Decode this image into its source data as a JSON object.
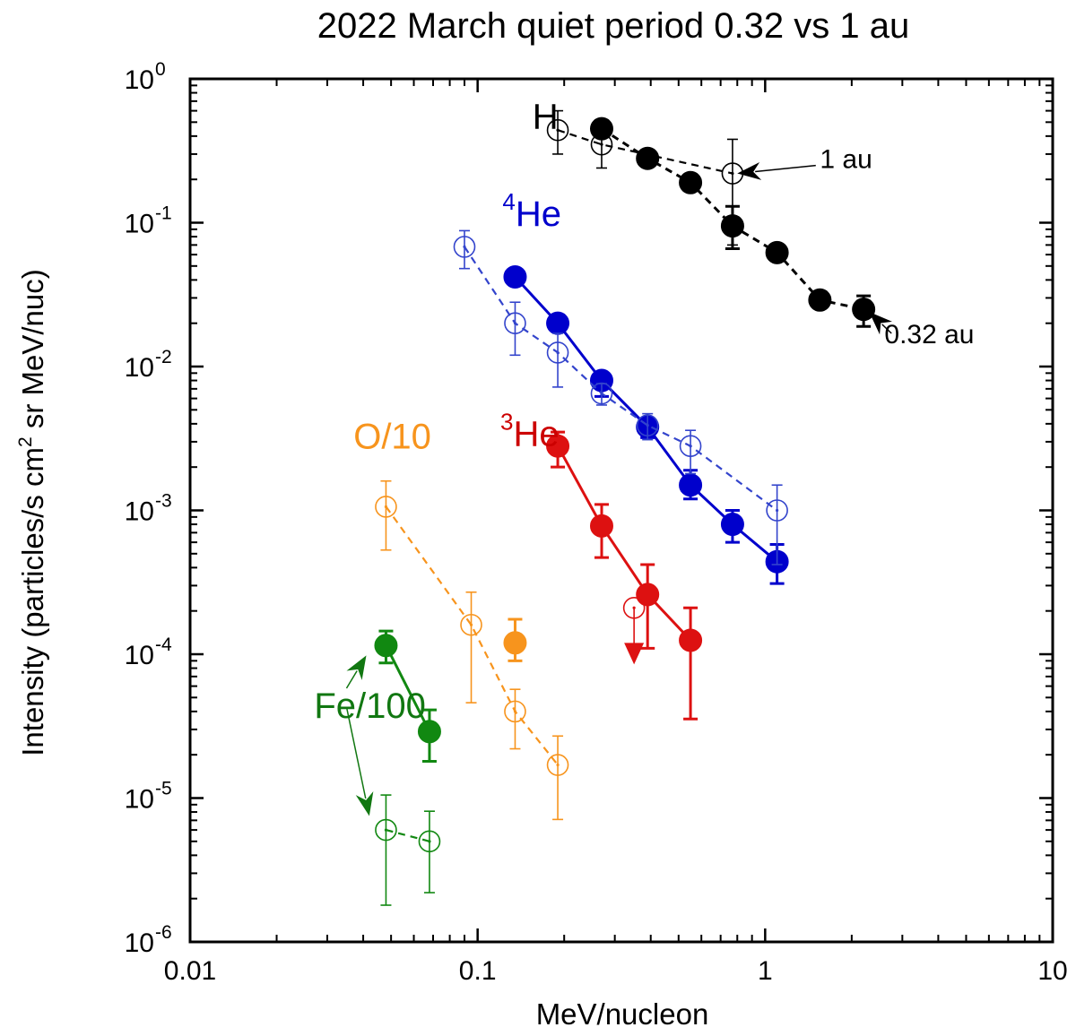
{
  "chart_data": {
    "type": "scatter",
    "title": "2022 March quiet period 0.32 vs 1 au",
    "xlabel": "MeV/nucleon",
    "ylabel": "Intensity (particles/s cm² sr MeV/nuc)",
    "ylabel_parts": [
      "Intensity (particles/s cm",
      "2",
      " sr MeV/nuc)"
    ],
    "xscale": "log",
    "yscale": "log",
    "xlim": [
      0.01,
      10
    ],
    "ylim": [
      1e-06,
      1
    ],
    "x_ticks": [
      {
        "value": 0.01,
        "label": "0.01"
      },
      {
        "value": 0.1,
        "label": "0.1"
      },
      {
        "value": 1,
        "label": "1"
      },
      {
        "value": 10,
        "label": "10"
      }
    ],
    "y_ticks": [
      {
        "value": 1e-06,
        "base": "10",
        "exp": "-6"
      },
      {
        "value": 1e-05,
        "base": "10",
        "exp": "-5"
      },
      {
        "value": 0.0001,
        "base": "10",
        "exp": "-4"
      },
      {
        "value": 0.001,
        "base": "10",
        "exp": "-3"
      },
      {
        "value": 0.01,
        "base": "10",
        "exp": "-2"
      },
      {
        "value": 0.1,
        "base": "10",
        "exp": "-1"
      },
      {
        "value": 1,
        "base": "10",
        "exp": "0"
      }
    ],
    "series": [
      {
        "name": "H 0.32 au",
        "species": "H",
        "distance": "0.32 au",
        "color": "#000000",
        "filled": true,
        "line": "dashed",
        "x": [
          0.27,
          0.39,
          0.55,
          0.77,
          1.1,
          1.55,
          2.2
        ],
        "y": [
          0.45,
          0.28,
          0.19,
          0.095,
          0.062,
          0.029,
          0.025
        ],
        "err_low": [
          null,
          null,
          null,
          0.066,
          null,
          null,
          0.019
        ],
        "err_high": [
          null,
          null,
          null,
          0.13,
          null,
          0.033,
          0.031
        ]
      },
      {
        "name": "H 1 au",
        "species": "H",
        "distance": "1 au",
        "color": "#000000",
        "filled": false,
        "line": "dashed",
        "x": [
          0.19,
          0.27,
          0.77
        ],
        "y": [
          0.44,
          0.35,
          0.22
        ],
        "err_low": [
          0.3,
          0.24,
          0.07
        ],
        "err_high": [
          0.6,
          0.48,
          0.38
        ]
      },
      {
        "name": "4He 0.32 au",
        "species": "4He",
        "distance": "0.32 au",
        "color": "#0000cc",
        "filled": true,
        "line": "solid",
        "x": [
          0.135,
          0.19,
          0.27,
          0.39,
          0.55,
          0.77,
          1.1
        ],
        "y": [
          0.042,
          0.02,
          0.008,
          0.0038,
          0.0015,
          0.0008,
          0.00044
        ],
        "err_low": [
          null,
          null,
          0.0062,
          0.0032,
          0.0012,
          0.0006,
          0.00031
        ],
        "err_high": [
          null,
          null,
          null,
          null,
          0.0019,
          0.001,
          0.00058
        ]
      },
      {
        "name": "4He 1 au",
        "species": "4He",
        "distance": "1 au",
        "color": "#3344cc",
        "filled": false,
        "line": "dashed",
        "x": [
          0.09,
          0.135,
          0.19,
          0.27,
          0.39,
          0.55,
          1.1
        ],
        "y": [
          0.068,
          0.02,
          0.0125,
          0.0065,
          0.0039,
          0.0028,
          0.001
        ],
        "err_low": [
          0.048,
          0.012,
          0.0072,
          0.0054,
          0.0031,
          0.0018,
          0.00042
        ],
        "err_high": [
          0.088,
          0.028,
          0.017,
          0.0076,
          0.0047,
          0.0036,
          0.0015
        ]
      },
      {
        "name": "3He 0.32 au",
        "species": "3He",
        "distance": "0.32 au",
        "color": "#dd1111",
        "filled": true,
        "line": "solid",
        "x": [
          0.19,
          0.27,
          0.39,
          0.55
        ],
        "y": [
          0.0028,
          0.00078,
          0.00026,
          0.000125
        ],
        "err_low": [
          0.002,
          0.00047,
          0.00011,
          3.55e-05
        ],
        "err_high": [
          0.0035,
          0.0011,
          0.00042,
          0.00021
        ]
      },
      {
        "name": "3He 1 au",
        "species": "3He",
        "distance": "1 au",
        "color": "#dd1111",
        "filled": false,
        "line": "none",
        "x": [
          0.35
        ],
        "y": [
          0.00021
        ],
        "upper_limit": true,
        "arrow_tip": 8.5e-05
      },
      {
        "name": "O/10 0.32 au",
        "species": "O/10",
        "distance": "0.32 au",
        "color": "#f7941d",
        "filled": true,
        "line": "none",
        "x": [
          0.135
        ],
        "y": [
          0.00012
        ],
        "err_low": [
          9e-05
        ],
        "err_high": [
          0.000175
        ]
      },
      {
        "name": "O/10 1 au",
        "species": "O/10",
        "distance": "1 au",
        "color": "#f7941d",
        "filled": false,
        "line": "dashed",
        "x": [
          0.048,
          0.095,
          0.135,
          0.19
        ],
        "y": [
          0.00106,
          0.00016,
          4e-05,
          1.7e-05
        ],
        "err_low": [
          0.00053,
          4.6e-05,
          2.2e-05,
          7.1e-06
        ],
        "err_high": [
          0.0016,
          0.00027,
          5.7e-05,
          2.7e-05
        ]
      },
      {
        "name": "Fe/100 0.32 au",
        "species": "Fe/100",
        "distance": "0.32 au",
        "color": "#118811",
        "filled": true,
        "line": "solid",
        "x": [
          0.048,
          0.068
        ],
        "y": [
          0.000115,
          2.9e-05
        ],
        "err_low": [
          8.7e-05,
          1.8e-05
        ],
        "err_high": [
          0.000145,
          4.1e-05
        ]
      },
      {
        "name": "Fe/100 1 au",
        "species": "Fe/100",
        "distance": "1 au",
        "color": "#118811",
        "filled": false,
        "line": "dashed",
        "x": [
          0.048,
          0.068
        ],
        "y": [
          6e-06,
          5e-06
        ],
        "err_low": [
          1.8e-06,
          2.2e-06
        ],
        "err_high": [
          1.05e-05,
          8.1e-06
        ]
      }
    ],
    "labels": [
      {
        "text": "H",
        "color": "#000000",
        "x": 0.155,
        "y": 0.45
      },
      {
        "text": "He",
        "sup": "4",
        "color": "#0000cc",
        "x": 0.122,
        "y": 0.095
      },
      {
        "text": "He",
        "sup": "3",
        "color": "#cc0000",
        "x": 0.12,
        "y": 0.0028
      },
      {
        "text": "O/10",
        "color": "#f7941d",
        "x": 0.037,
        "y": 0.0027
      },
      {
        "text": "Fe/100",
        "color": "#117711",
        "x": 0.027,
        "y": 3.6e-05
      }
    ],
    "annotations": [
      {
        "text": "1 au",
        "color": "#000000",
        "text_x": 1.55,
        "text_y": 0.24,
        "from_x": 1.5,
        "from_y": 0.25,
        "to_x": 0.8,
        "to_y": 0.22
      },
      {
        "text": "0.32 au",
        "color": "#000000",
        "text_x": 2.6,
        "text_y": 0.0145,
        "from_x": 2.75,
        "from_y": 0.017,
        "to_x": 2.3,
        "to_y": 0.024
      },
      {
        "text": "",
        "color": "#117711",
        "from_x": 0.035,
        "from_y": 5.8e-05,
        "to_x": 0.041,
        "to_y": 9.8e-05
      },
      {
        "text": "",
        "color": "#117711",
        "from_x": 0.035,
        "from_y": 4.3e-05,
        "to_x": 0.042,
        "to_y": 7.5e-06
      }
    ]
  }
}
